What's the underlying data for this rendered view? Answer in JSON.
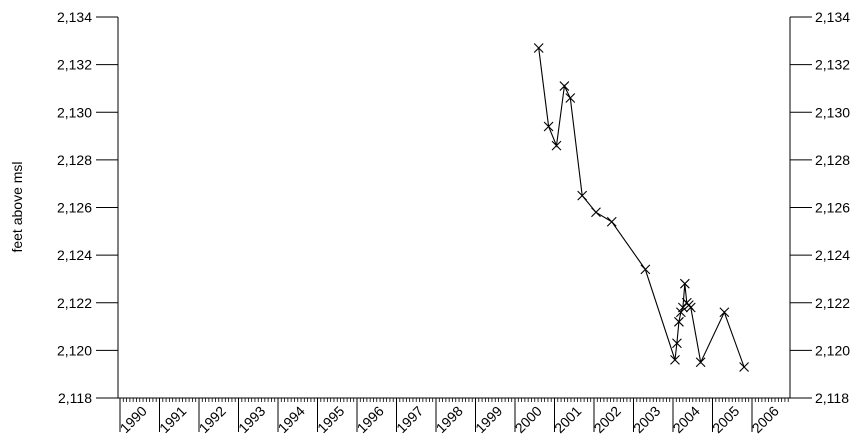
{
  "chart_data": {
    "type": "line",
    "title": "",
    "ylabel": "feet above msl",
    "xlabel": "",
    "xlim": [
      1990,
      2006.9
    ],
    "ylim": [
      2118,
      2134
    ],
    "y_ticks": [
      2118,
      2120,
      2122,
      2124,
      2126,
      2128,
      2130,
      2132,
      2134
    ],
    "y_tick_labels": [
      "2,118",
      "2,120",
      "2,122",
      "2,124",
      "2,126",
      "2,128",
      "2,130",
      "2,132",
      "2,134"
    ],
    "x_tick_labels": [
      "1990",
      "1991",
      "1992",
      "1993",
      "1994",
      "1995",
      "1996",
      "1997",
      "1998",
      "1999",
      "2000",
      "2001",
      "2002",
      "2003",
      "2004",
      "2005",
      "2006"
    ],
    "right_axis_mirrored": true,
    "grid": false,
    "series": [
      {
        "marker": "x",
        "x": [
          2000.6,
          2000.85,
          2001.05,
          2001.25,
          2001.4,
          2001.7,
          2002.05,
          2002.45,
          2003.3,
          2004.05,
          2004.1,
          2004.15,
          2004.2,
          2004.25,
          2004.3,
          2004.35,
          2004.4,
          2004.45,
          2004.7,
          2005.3,
          2005.8
        ],
        "y": [
          2132.7,
          2129.4,
          2128.6,
          2131.1,
          2130.6,
          2126.5,
          2125.8,
          2125.4,
          2123.4,
          2119.6,
          2120.3,
          2121.2,
          2121.6,
          2121.8,
          2122.8,
          2122.0,
          2121.9,
          2121.8,
          2119.5,
          2121.6,
          2119.3
        ]
      }
    ]
  }
}
